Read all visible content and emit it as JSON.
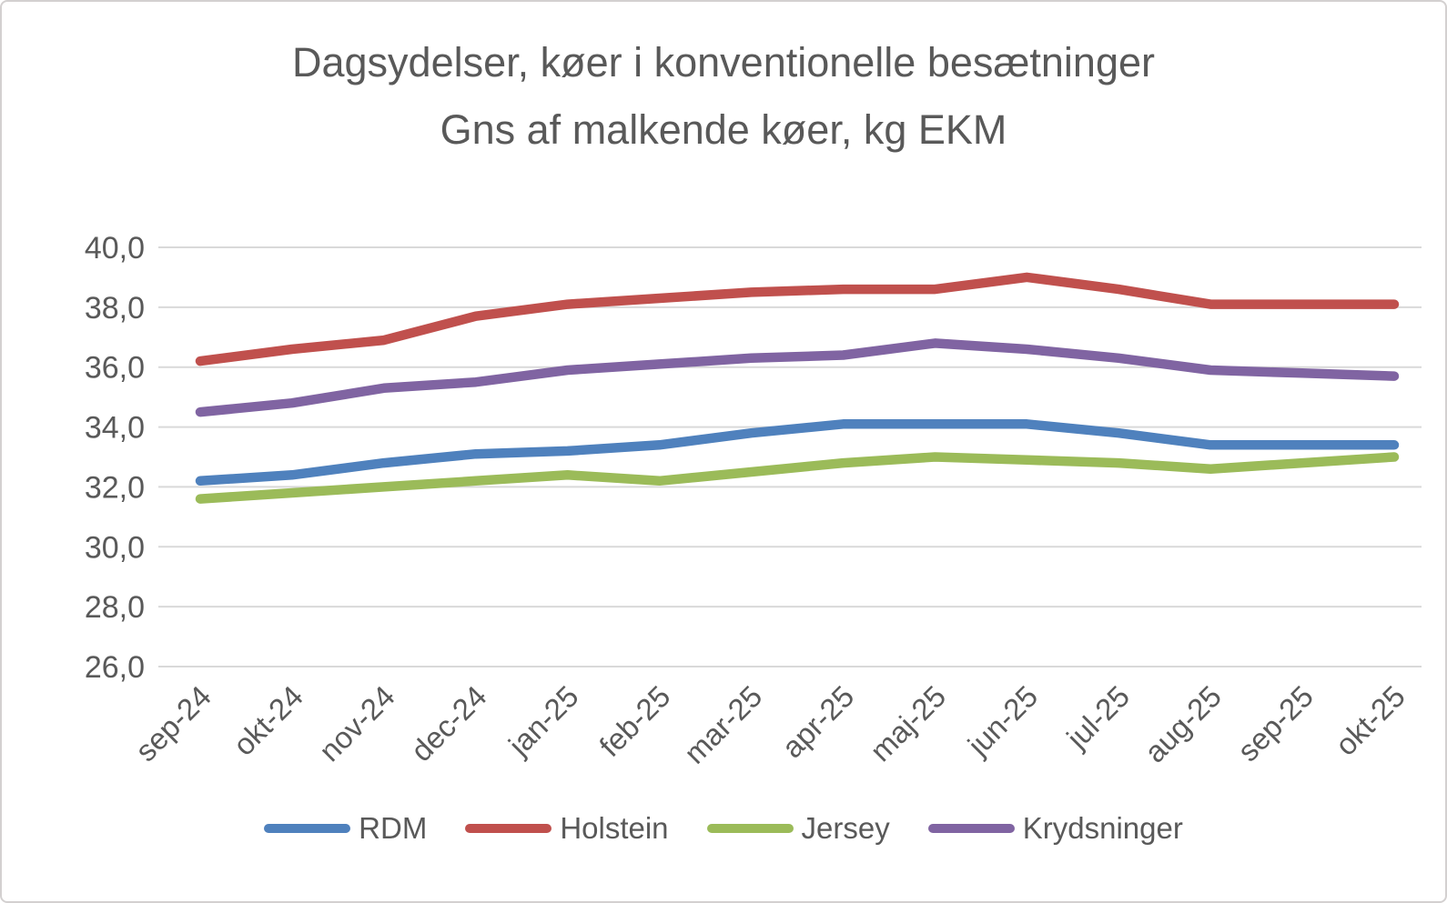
{
  "chart_data": {
    "type": "line",
    "title": "Dagsydelser, køer i konventionelle besætninger",
    "subtitle": "Gns af malkende køer, kg EKM",
    "categories": [
      "sep-24",
      "okt-24",
      "nov-24",
      "dec-24",
      "jan-25",
      "feb-25",
      "mar-25",
      "apr-25",
      "maj-25",
      "jun-25",
      "jul-25",
      "aug-25",
      "sep-25",
      "okt-25"
    ],
    "series": [
      {
        "name": "RDM",
        "color": "#4F81BD",
        "values": [
          32.2,
          32.4,
          32.8,
          33.1,
          33.2,
          33.4,
          33.8,
          34.1,
          34.1,
          34.1,
          33.8,
          33.4,
          33.4,
          33.4
        ]
      },
      {
        "name": "Holstein",
        "color": "#C0504D",
        "values": [
          36.2,
          36.6,
          36.9,
          37.7,
          38.1,
          38.3,
          38.5,
          38.6,
          38.6,
          39.0,
          38.6,
          38.1,
          38.1,
          38.1
        ]
      },
      {
        "name": "Jersey",
        "color": "#9BBB59",
        "values": [
          31.6,
          31.8,
          32.0,
          32.2,
          32.4,
          32.2,
          32.5,
          32.8,
          33.0,
          32.9,
          32.8,
          32.6,
          32.8,
          33.0
        ]
      },
      {
        "name": "Krydsninger",
        "color": "#8064A2",
        "values": [
          34.5,
          34.8,
          35.3,
          35.5,
          35.9,
          36.1,
          36.3,
          36.4,
          36.8,
          36.6,
          36.3,
          35.9,
          35.8,
          35.7
        ]
      }
    ],
    "ylim": [
      26.0,
      40.0
    ],
    "ytick_step": 2.0,
    "ytick_labels": [
      "26,0",
      "28,0",
      "30,0",
      "32,0",
      "34,0",
      "36,0",
      "38,0",
      "40,0"
    ],
    "xlabel": "",
    "ylabel": "",
    "grid": true,
    "legend_position": "bottom",
    "styles": {
      "text_color": "#595959",
      "gridline_color": "#D9D9D9",
      "background_color": "#FFFFFF",
      "frame_border_color": "#D3D0D0"
    }
  }
}
